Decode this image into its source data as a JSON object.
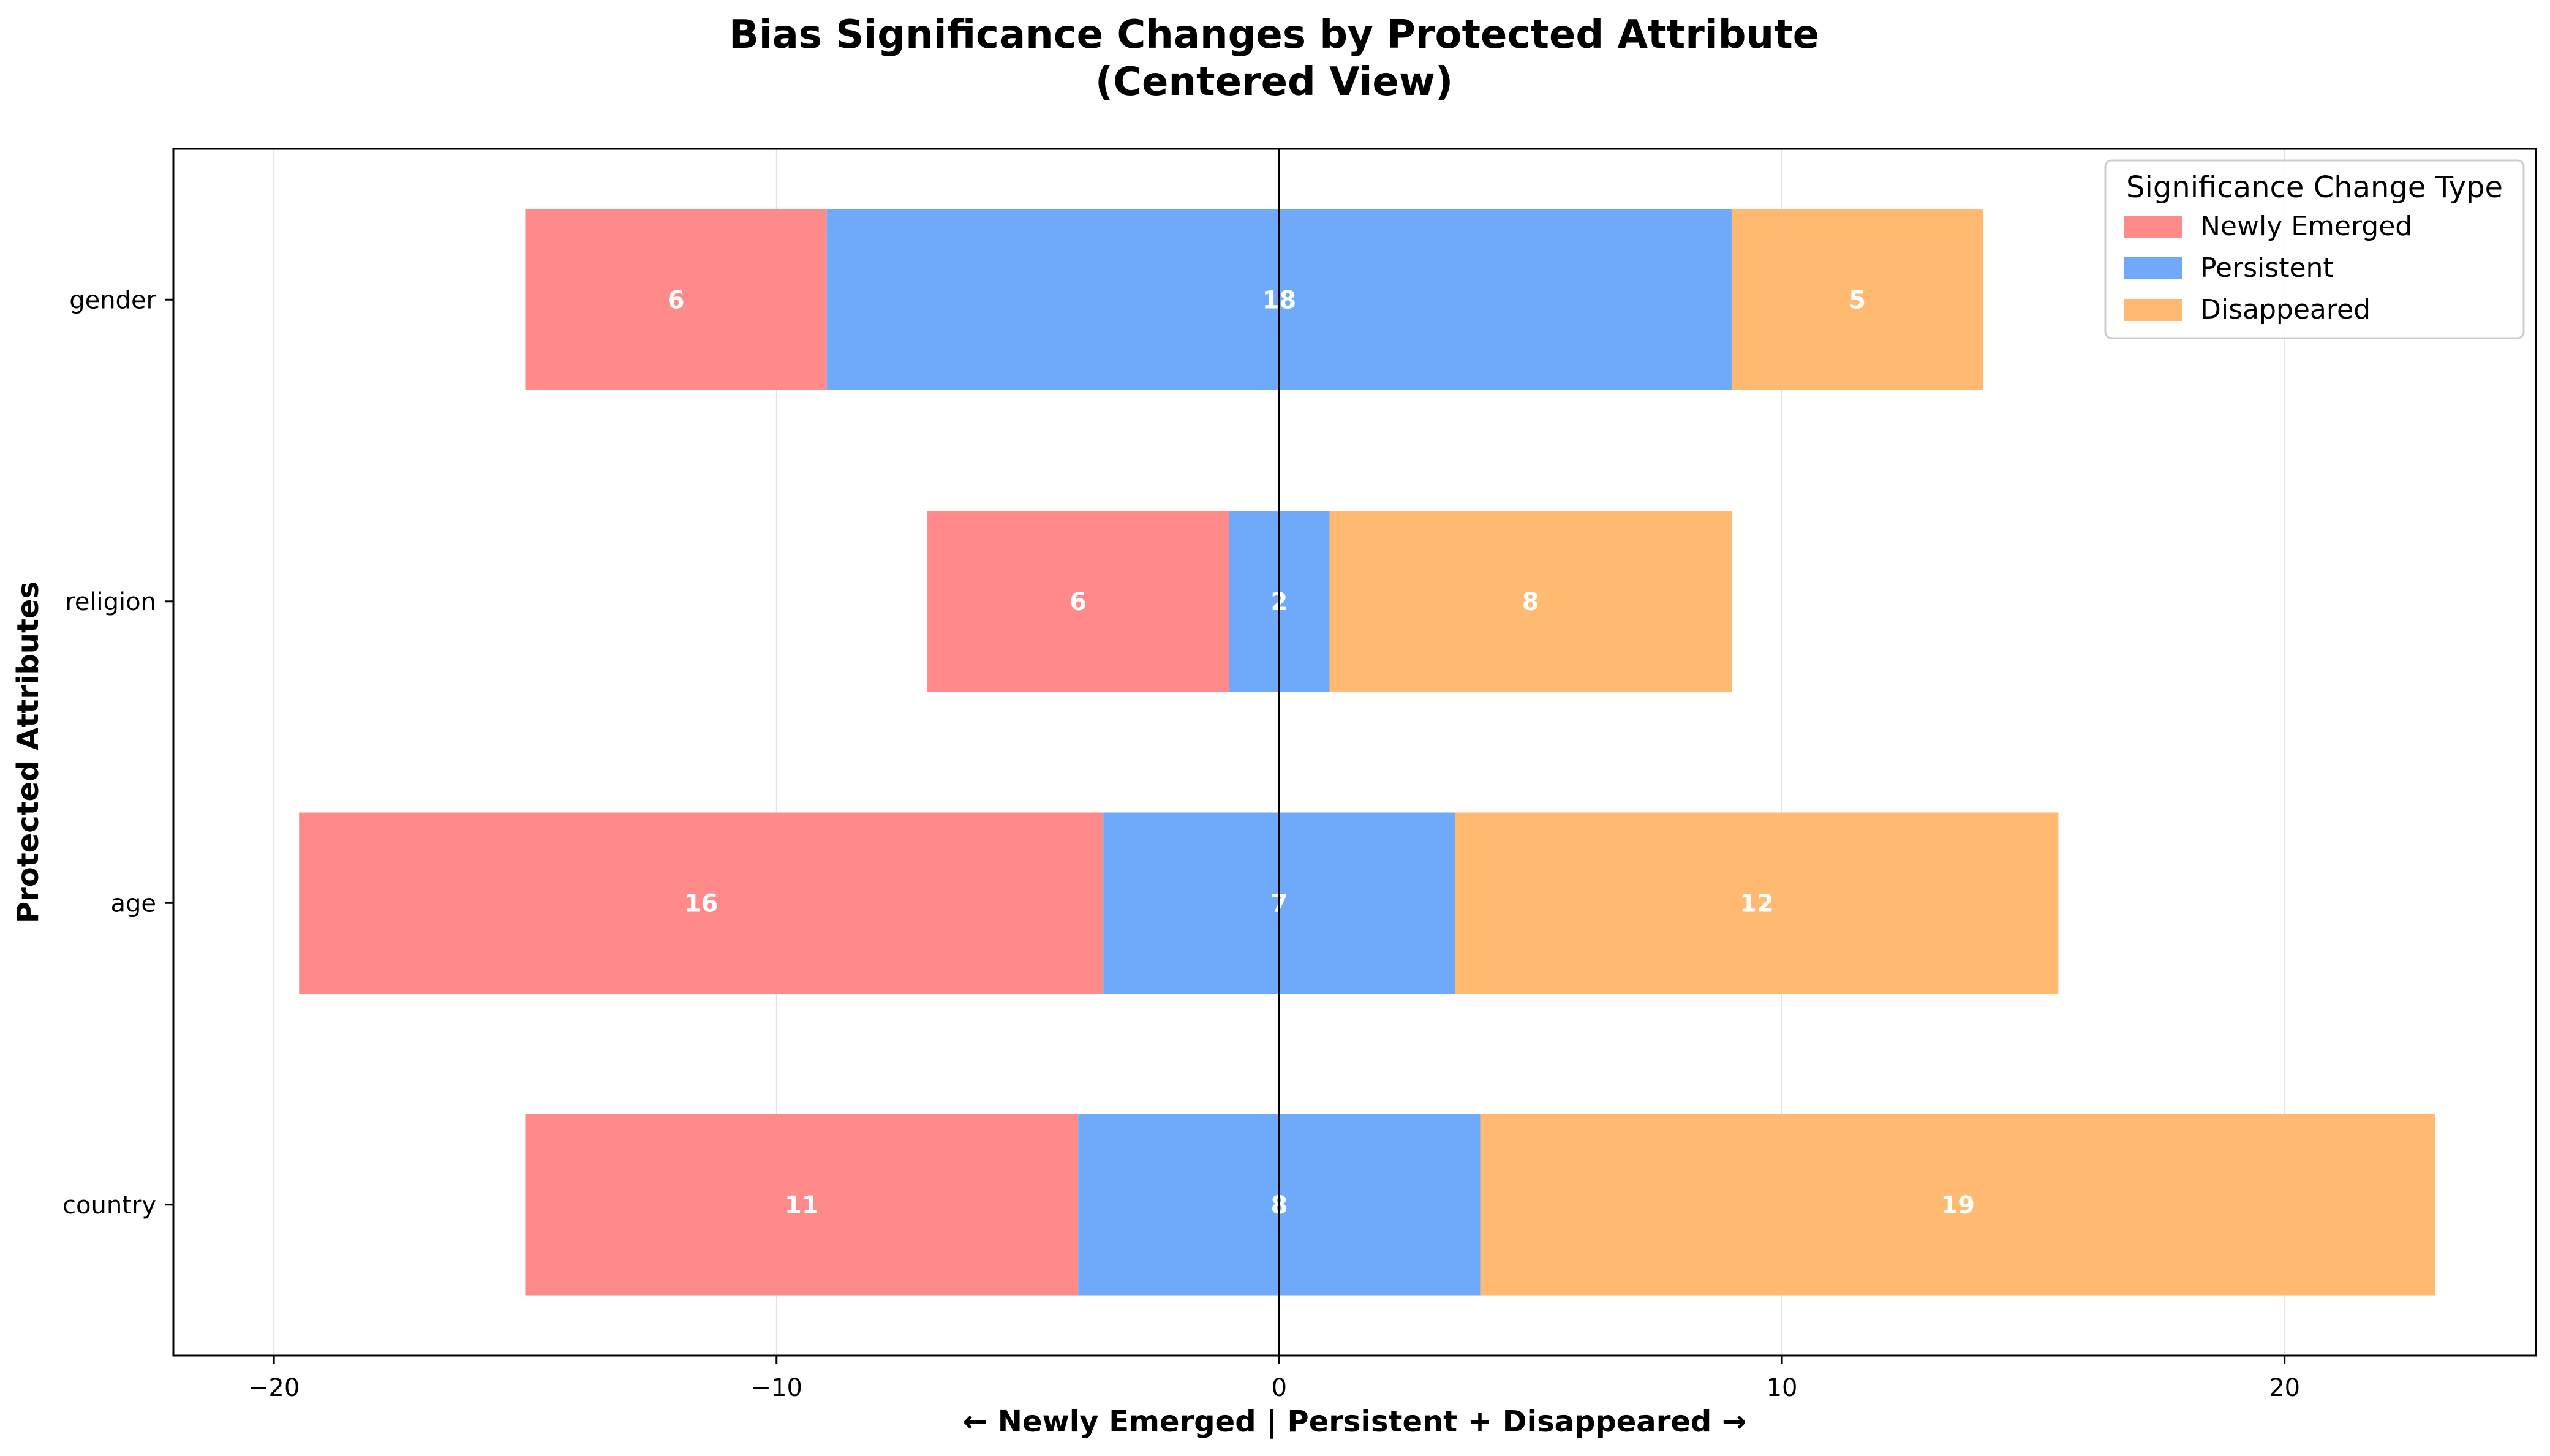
{
  "chart_data": {
    "type": "bar",
    "orientation": "horizontal-diverging-stacked",
    "title_line1": "Bias Significance Changes by Protected Attribute",
    "title_line2": "(Centered View)",
    "xlabel": "← Newly Emerged    |    Persistent + Disappeared →",
    "ylabel": "Protected Attributes",
    "xlim": [
      -22,
      25
    ],
    "xticks": [
      -20,
      -10,
      0,
      10,
      20
    ],
    "xtick_labels": [
      "−20",
      "−10",
      "0",
      "10",
      "20"
    ],
    "grid": "vertical",
    "categories": [
      "gender",
      "religion",
      "age",
      "country"
    ],
    "series": [
      {
        "name": "Newly Emerged",
        "color": "#ff8a8a",
        "values": [
          6,
          6,
          16,
          11
        ]
      },
      {
        "name": "Persistent",
        "color": "#6eaaf9",
        "values": [
          18,
          2,
          7,
          8
        ]
      },
      {
        "name": "Disappeared",
        "color": "#ffb970",
        "values": [
          5,
          8,
          12,
          19
        ]
      }
    ],
    "layout_rule": "Persistent centered on 0; Newly Emerged extends left of Persistent; Disappeared extends right of Persistent",
    "legend": {
      "title": "Significance Change Type",
      "placement": "top-right"
    }
  }
}
